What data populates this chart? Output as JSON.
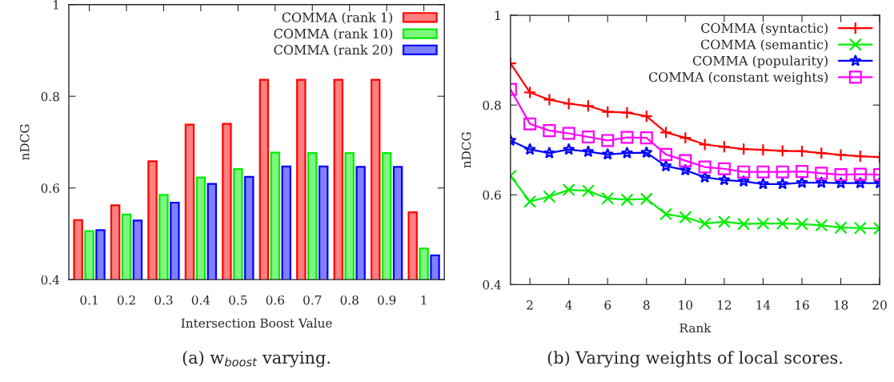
{
  "chart_data": [
    {
      "type": "bar",
      "xlabel": "Intersection Boost Value",
      "ylabel": "nDCG",
      "categories": [
        "0.1",
        "0.2",
        "0.3",
        "0.4",
        "0.5",
        "0.6",
        "0.7",
        "0.8",
        "0.9",
        "1"
      ],
      "series": [
        {
          "name": "COMMA (rank 1)",
          "color": "#ff0000",
          "values": [
            0.53,
            0.562,
            0.658,
            0.738,
            0.74,
            0.836,
            0.836,
            0.836,
            0.836,
            0.547
          ]
        },
        {
          "name": "COMMA (rank 10)",
          "color": "#00ee00",
          "values": [
            0.506,
            0.542,
            0.585,
            0.623,
            0.641,
            0.677,
            0.676,
            0.676,
            0.676,
            0.468
          ]
        },
        {
          "name": "COMMA (rank 20)",
          "color": "#0000ff",
          "values": [
            0.508,
            0.529,
            0.568,
            0.609,
            0.624,
            0.647,
            0.647,
            0.646,
            0.646,
            0.453
          ]
        }
      ],
      "ylim": [
        0.4,
        1
      ],
      "yticks": [
        0.4,
        0.6,
        0.8,
        1
      ],
      "grid": false,
      "legend": "top right",
      "annotations": [
        "(a) w$_{boost}$ varying."
      ]
    },
    {
      "type": "line",
      "xlabel": "Rank",
      "ylabel": "nDCG",
      "x": [
        1,
        2,
        3,
        4,
        5,
        6,
        7,
        8,
        9,
        10,
        11,
        12,
        13,
        14,
        15,
        16,
        17,
        18,
        19,
        20
      ],
      "series": [
        {
          "name": "COMMA (syntactic)",
          "color": "#ff0000",
          "marker": "plus",
          "values": [
            0.893,
            0.828,
            0.812,
            0.803,
            0.798,
            0.785,
            0.783,
            0.775,
            0.739,
            0.727,
            0.712,
            0.707,
            0.702,
            0.7,
            0.698,
            0.697,
            0.693,
            0.689,
            0.686,
            0.684
          ]
        },
        {
          "name": "COMMA (semantic)",
          "color": "#00ee00",
          "marker": "cross",
          "values": [
            0.642,
            0.585,
            0.596,
            0.611,
            0.609,
            0.592,
            0.589,
            0.591,
            0.557,
            0.55,
            0.536,
            0.54,
            0.535,
            0.536,
            0.536,
            0.535,
            0.532,
            0.527,
            0.526,
            0.525
          ]
        },
        {
          "name": "COMMA (popularity)",
          "color": "#0000ff",
          "marker": "star",
          "values": [
            0.721,
            0.701,
            0.693,
            0.701,
            0.696,
            0.69,
            0.693,
            0.694,
            0.664,
            0.655,
            0.639,
            0.633,
            0.63,
            0.624,
            0.624,
            0.627,
            0.627,
            0.626,
            0.626,
            0.626
          ]
        },
        {
          "name": "COMMA (constant weights)",
          "color": "#ff00ff",
          "marker": "square",
          "values": [
            0.835,
            0.758,
            0.743,
            0.737,
            0.729,
            0.721,
            0.728,
            0.727,
            0.69,
            0.676,
            0.662,
            0.658,
            0.651,
            0.651,
            0.651,
            0.652,
            0.648,
            0.645,
            0.646,
            0.645
          ]
        }
      ],
      "xlim": [
        1,
        20
      ],
      "xticks": [
        2,
        4,
        6,
        8,
        10,
        12,
        14,
        16,
        18,
        20
      ],
      "ylim": [
        0.4,
        1
      ],
      "yticks": [
        0.4,
        0.6,
        0.8,
        1
      ],
      "grid": false,
      "legend": "top right",
      "line_style": "solid",
      "annotations": [
        "(b) Varying weights of local scores."
      ]
    }
  ]
}
